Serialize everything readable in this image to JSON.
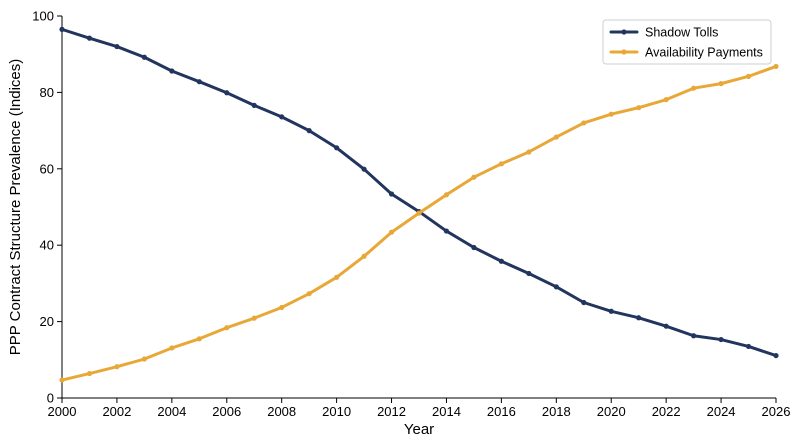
{
  "chart_data": {
    "type": "line",
    "title": "",
    "xlabel": "Year",
    "ylabel": "PPP Contract Structure Prevalence (Indices)",
    "xlim": [
      2000,
      2026
    ],
    "ylim": [
      0,
      100
    ],
    "xticks": [
      2000,
      2002,
      2004,
      2006,
      2008,
      2010,
      2012,
      2014,
      2016,
      2018,
      2020,
      2022,
      2024,
      2026
    ],
    "yticks": [
      0,
      20,
      40,
      60,
      80,
      100
    ],
    "grid": false,
    "legend_position": "top-right",
    "x": [
      2000,
      2001,
      2002,
      2003,
      2004,
      2005,
      2006,
      2007,
      2008,
      2009,
      2010,
      2011,
      2012,
      2013,
      2014,
      2015,
      2016,
      2017,
      2018,
      2019,
      2020,
      2021,
      2022,
      2023,
      2024,
      2025,
      2026
    ],
    "series": [
      {
        "name": "Shadow Tolls",
        "color": "#22355e",
        "values": [
          96.5,
          94.2,
          92.0,
          89.2,
          85.6,
          82.8,
          79.9,
          76.6,
          73.6,
          70.0,
          65.5,
          59.9,
          53.4,
          48.8,
          43.7,
          39.4,
          35.8,
          32.6,
          29.1,
          25.0,
          22.7,
          21.0,
          18.8,
          16.3,
          15.3,
          13.5,
          11.1
        ]
      },
      {
        "name": "Availability Payments",
        "color": "#e8a838",
        "values": [
          4.7,
          6.4,
          8.2,
          10.2,
          13.1,
          15.5,
          18.4,
          20.9,
          23.7,
          27.3,
          31.6,
          37.1,
          43.4,
          48.4,
          53.2,
          57.8,
          61.3,
          64.4,
          68.3,
          72.0,
          74.3,
          76.0,
          78.1,
          81.1,
          82.3,
          84.2,
          86.8
        ]
      }
    ]
  }
}
